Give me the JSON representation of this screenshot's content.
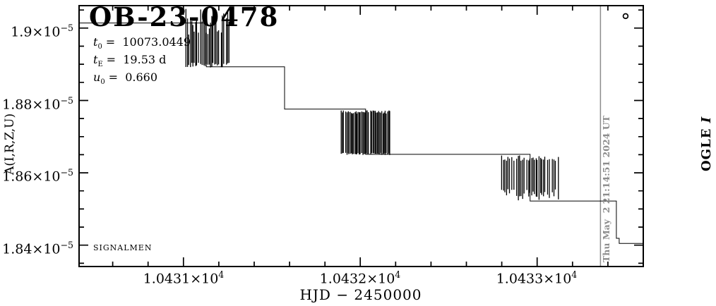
{
  "header": {
    "title": "OB-23-0478"
  },
  "params": [
    {
      "sym": "t",
      "sub": "0",
      "rest": "=  10073.0449"
    },
    {
      "sym": "t",
      "sub": "E",
      "rest": "=  19.53 d"
    },
    {
      "sym": "u",
      "sub": "0",
      "rest": "=  0.660"
    }
  ],
  "watermark": "SIGNALMEN",
  "axes": {
    "x": {
      "label": "HJD − 2450000",
      "ticks": [
        {
          "base": "1.0431×10",
          "exp": "4",
          "value": 10431
        },
        {
          "base": "1.0432×10",
          "exp": "4",
          "value": 10432
        },
        {
          "base": "1.0433×10",
          "exp": "4",
          "value": 10433
        }
      ]
    },
    "y": {
      "label": "A(I,R,Z,U)",
      "ticks": [
        {
          "base": "1.9×10",
          "exp": "−5",
          "value": 1.9e-05
        },
        {
          "base": "1.88×10",
          "exp": "−5",
          "value": 1.88e-05
        },
        {
          "base": "1.86×10",
          "exp": "−5",
          "value": 1.86e-05
        },
        {
          "base": "1.84×10",
          "exp": "−5",
          "value": 1.84e-05
        }
      ]
    }
  },
  "right_label": {
    "text": "OGLE ",
    "band": "I"
  },
  "now_marker": {
    "text": "Thu May  2 21:14:51 2024 UT",
    "x": 10433.358,
    "color": "#8c8c8c"
  },
  "chart_data": {
    "type": "line",
    "title": "OB-23-0478",
    "xlabel": "HJD − 2450000",
    "ylabel": "A(I,R,Z,U)",
    "xlim": [
      10430.41,
      10433.6
    ],
    "ylim": [
      1.8341e-05,
      1.9062e-05
    ],
    "x_major": [
      10431,
      10432,
      10433
    ],
    "x_minor_step": 0.2,
    "y_major": [
      1.84e-05,
      1.86e-05,
      1.88e-05,
      1.9e-05
    ],
    "y_minor_step": 5e-08,
    "model_steps": [
      [
        10430.41,
        1.9014e-05
      ],
      [
        10431.13,
        1.9014e-05
      ],
      [
        10431.13,
        1.8893e-05
      ],
      [
        10431.572,
        1.8893e-05
      ],
      [
        10431.572,
        1.8776e-05
      ],
      [
        10432.03,
        1.8776e-05
      ],
      [
        10432.03,
        1.8651e-05
      ],
      [
        10432.96,
        1.8651e-05
      ],
      [
        10432.96,
        1.8522e-05
      ],
      [
        10433.448,
        1.8522e-05
      ],
      [
        10433.448,
        1.8419e-05
      ],
      [
        10433.464,
        1.8419e-05
      ],
      [
        10433.464,
        1.8405e-05
      ],
      [
        10433.6,
        1.8405e-05
      ]
    ],
    "data_clusters": [
      {
        "x_start": 10431.008,
        "x_end": 10431.26,
        "y_top": 1.9056e-05,
        "y_bottom": 1.8891e-05,
        "ragged_top": 0.45,
        "ragged_bottom": 0.08,
        "spacing": 1.9,
        "gap_prob": 0.12
      },
      {
        "x_start": 10431.892,
        "x_end": 10432.168,
        "y_top": 1.8773e-05,
        "y_bottom": 1.8649e-05,
        "ragged_top": 0.08,
        "ragged_bottom": 0.05,
        "spacing": 1.6,
        "gap_prob": 0.06
      },
      {
        "x_start": 10432.8,
        "x_end": 10433.12,
        "y_top": 1.8649e-05,
        "y_bottom": 1.8524e-05,
        "ragged_top": 0.13,
        "ragged_bottom": 0.25,
        "spacing": 2.1,
        "gap_prob": 0.15
      }
    ],
    "last_point": {
      "x": 10433.5,
      "y": 1.9033e-05,
      "marker": "open-circle"
    }
  }
}
